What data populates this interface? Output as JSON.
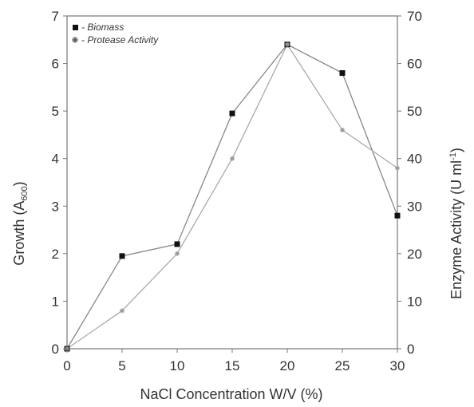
{
  "chart_data": {
    "type": "line",
    "title": "",
    "xlabel": "NaCl Concentration  W/V (%)",
    "ylabel_left": {
      "main": "Growth (A",
      "sub": "600",
      "end": ")"
    },
    "ylabel_right": {
      "main": "Enzyme Activity (U ml",
      "sup": "-1",
      "end": ")"
    },
    "x": [
      0,
      5,
      10,
      15,
      20,
      25,
      30
    ],
    "xlim": [
      0,
      30
    ],
    "xticks": [
      "0",
      "5",
      "10",
      "15",
      "20",
      "25",
      "30"
    ],
    "ylim_left": [
      0,
      7
    ],
    "yticks_left": [
      "0",
      "1",
      "2",
      "3",
      "4",
      "5",
      "6",
      "7"
    ],
    "ylim_right": [
      0,
      70
    ],
    "yticks_right": [
      "0",
      "10",
      "20",
      "30",
      "40",
      "50",
      "60",
      "70"
    ],
    "grid": false,
    "legend_position": "top-left",
    "series": [
      {
        "name": "- Biomass",
        "axis": "left",
        "marker": "square",
        "color": "#111111",
        "line_color": "#888888",
        "values": [
          0,
          1.95,
          2.2,
          4.95,
          6.4,
          5.8,
          2.8
        ]
      },
      {
        "name": "- Protease Activity",
        "axis": "right",
        "marker": "asterisk",
        "color": "#999999",
        "line_color": "#aaaaaa",
        "values": [
          0,
          8,
          20,
          40,
          64,
          46,
          38
        ]
      }
    ]
  }
}
